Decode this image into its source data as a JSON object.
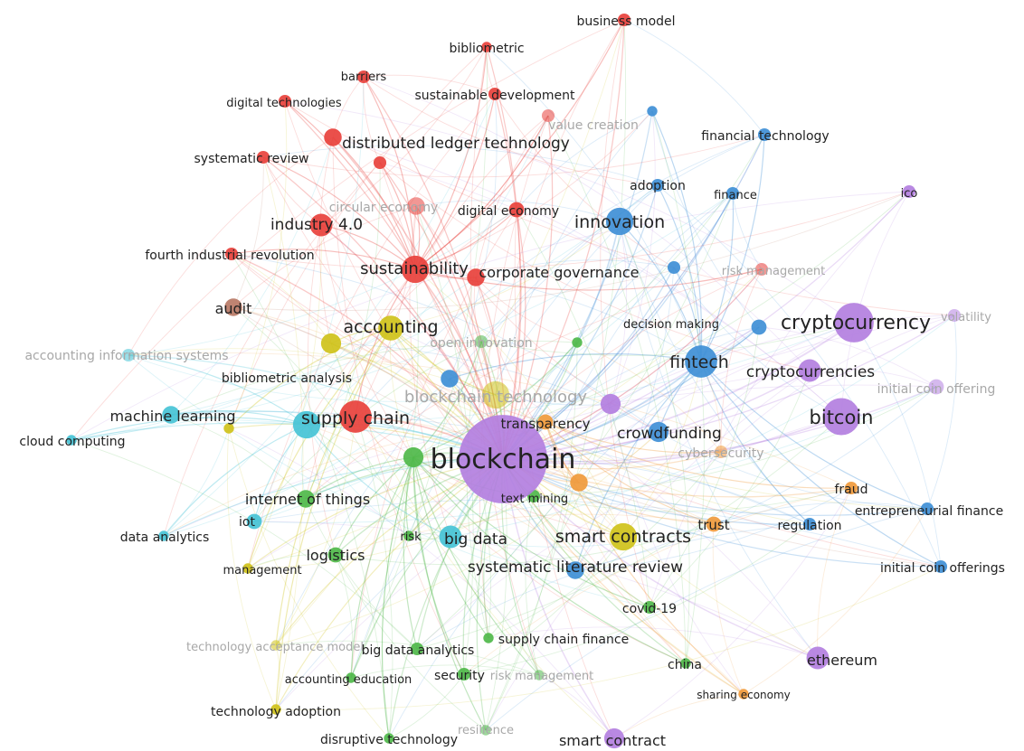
{
  "palette": {
    "red": "#e8413c",
    "blue": "#3f8fd6",
    "purple": "#b37fe0",
    "cyan": "#46c3d6",
    "green": "#4fb84a",
    "yellow": "#cfc21a",
    "orange": "#f09a3c",
    "brown": "#b97a66",
    "label": "#222222",
    "label_faded": "#a8a8a8",
    "background": "#ffffff"
  },
  "nodes": [
    {
      "id": "blockchain",
      "label": "blockchain",
      "cluster": "purple",
      "weight": 34
    },
    {
      "id": "cryptocurrency",
      "label": "cryptocurrency",
      "cluster": "purple",
      "weight": 14
    },
    {
      "id": "bitcoin",
      "label": "bitcoin",
      "cluster": "purple",
      "weight": 13
    },
    {
      "id": "cryptocurrencies",
      "label": "cryptocurrencies",
      "cluster": "purple",
      "weight": 7
    },
    {
      "id": "ethereum",
      "label": "ethereum",
      "cluster": "purple",
      "weight": 7
    },
    {
      "id": "smart-contract",
      "label": "smart contract",
      "cluster": "purple",
      "weight": 6
    },
    {
      "id": "ico",
      "label": "ico",
      "cluster": "purple",
      "weight": 3
    },
    {
      "id": "volatility",
      "label": "volatility",
      "cluster": "purple",
      "weight": 3,
      "faded": true
    },
    {
      "id": "initial-coin-offering",
      "label": "initial coin offering",
      "cluster": "purple",
      "weight": 4,
      "faded": true
    },
    {
      "id": "blockchain-purple-hub",
      "label": "",
      "cluster": "purple",
      "weight": 6
    },
    {
      "id": "innovation",
      "label": "innovation",
      "cluster": "blue",
      "weight": 9
    },
    {
      "id": "fintech",
      "label": "fintech",
      "cluster": "blue",
      "weight": 11
    },
    {
      "id": "crowdfunding",
      "label": "crowdfunding",
      "cluster": "blue",
      "weight": 6
    },
    {
      "id": "financial-technology",
      "label": "financial technology",
      "cluster": "blue",
      "weight": 3
    },
    {
      "id": "adoption",
      "label": "adoption",
      "cluster": "blue",
      "weight": 3
    },
    {
      "id": "finance",
      "label": "finance",
      "cluster": "blue",
      "weight": 3
    },
    {
      "id": "decision-making",
      "label": "decision making",
      "cluster": "blue",
      "weight": 4
    },
    {
      "id": "regulation",
      "label": "regulation",
      "cluster": "blue",
      "weight": 3
    },
    {
      "id": "entrepreneurial-finance",
      "label": "entrepreneurial finance",
      "cluster": "blue",
      "weight": 3
    },
    {
      "id": "initial-coin-offerings",
      "label": "initial coin offerings",
      "cluster": "blue",
      "weight": 3
    },
    {
      "id": "systematic-literature-review",
      "label": "systematic literature review",
      "cluster": "blue",
      "weight": 5
    },
    {
      "id": "blue-minor-1",
      "label": "",
      "cluster": "blue",
      "weight": 3
    },
    {
      "id": "blue-minor-2",
      "label": "",
      "cluster": "blue",
      "weight": 5
    },
    {
      "id": "blue-minor-3",
      "label": "",
      "cluster": "blue",
      "weight": 2
    },
    {
      "id": "sustainability",
      "label": "sustainability",
      "cluster": "red",
      "weight": 9
    },
    {
      "id": "supply-chain",
      "label": "supply chain",
      "cluster": "red",
      "weight": 11
    },
    {
      "id": "industry-4-0",
      "label": "industry 4.0",
      "cluster": "red",
      "weight": 7
    },
    {
      "id": "distributed-ledger-technology",
      "label": "distributed ledger technology",
      "cluster": "red",
      "weight": 5
    },
    {
      "id": "corporate-governance",
      "label": "corporate governance",
      "cluster": "red",
      "weight": 5
    },
    {
      "id": "digital-economy",
      "label": "digital economy",
      "cluster": "red",
      "weight": 4
    },
    {
      "id": "circular-economy",
      "label": "circular economy",
      "cluster": "red",
      "weight": 5,
      "faded": true
    },
    {
      "id": "fourth-industrial-revolution",
      "label": "fourth industrial revolution",
      "cluster": "red",
      "weight": 3
    },
    {
      "id": "systematic-review",
      "label": "systematic review",
      "cluster": "red",
      "weight": 3
    },
    {
      "id": "digital-technologies",
      "label": "digital technologies",
      "cluster": "red",
      "weight": 3
    },
    {
      "id": "barriers",
      "label": "barriers",
      "cluster": "red",
      "weight": 3
    },
    {
      "id": "sustainable-development",
      "label": "sustainable development",
      "cluster": "red",
      "weight": 3
    },
    {
      "id": "value-creation",
      "label": "value creation",
      "cluster": "red",
      "weight": 3,
      "faded": true
    },
    {
      "id": "bibliometric",
      "label": "bibliometric",
      "cluster": "red",
      "weight": 2
    },
    {
      "id": "business-model",
      "label": "business model",
      "cluster": "red",
      "weight": 3
    },
    {
      "id": "risk-management-red",
      "label": "risk management",
      "cluster": "red",
      "weight": 3,
      "faded": true
    },
    {
      "id": "red-minor-1",
      "label": "",
      "cluster": "red",
      "weight": 3
    },
    {
      "id": "accounting",
      "label": "accounting",
      "cluster": "yellow",
      "weight": 8
    },
    {
      "id": "blockchain-technology",
      "label": "blockchain technology",
      "cluster": "yellow",
      "weight": 9,
      "faded": true
    },
    {
      "id": "smart-contracts",
      "label": "smart contracts",
      "cluster": "yellow",
      "weight": 9
    },
    {
      "id": "bibliometric-analysis",
      "label": "bibliometric analysis",
      "cluster": "yellow",
      "weight": 6
    },
    {
      "id": "technology-acceptance-model",
      "label": "technology acceptance model",
      "cluster": "yellow",
      "weight": 2,
      "faded": true
    },
    {
      "id": "technology-adoption",
      "label": "technology adoption",
      "cluster": "yellow",
      "weight": 2
    },
    {
      "id": "management",
      "label": "management",
      "cluster": "yellow",
      "weight": 2
    },
    {
      "id": "yellow-minor-1",
      "label": "",
      "cluster": "yellow",
      "weight": 2
    },
    {
      "id": "internet-of-things",
      "label": "internet of things",
      "cluster": "green",
      "weight": 5
    },
    {
      "id": "logistics",
      "label": "logistics",
      "cluster": "green",
      "weight": 4
    },
    {
      "id": "open-innovation",
      "label": "open innovation",
      "cluster": "green",
      "weight": 3,
      "faded": true
    },
    {
      "id": "text-mining",
      "label": "text mining",
      "cluster": "green",
      "weight": 3
    },
    {
      "id": "big-data-analytics",
      "label": "big data analytics",
      "cluster": "green",
      "weight": 3
    },
    {
      "id": "supply-chain-finance",
      "label": "supply chain finance",
      "cluster": "green",
      "weight": 2
    },
    {
      "id": "covid-19",
      "label": "covid-19",
      "cluster": "green",
      "weight": 3
    },
    {
      "id": "china",
      "label": "china",
      "cluster": "green",
      "weight": 2
    },
    {
      "id": "security",
      "label": "security",
      "cluster": "green",
      "weight": 3
    },
    {
      "id": "accounting-education",
      "label": "accounting education",
      "cluster": "green",
      "weight": 2
    },
    {
      "id": "disruptive-technology",
      "label": "disruptive technology",
      "cluster": "green",
      "weight": 2
    },
    {
      "id": "resilience",
      "label": "resilience",
      "cluster": "green",
      "weight": 2,
      "faded": true
    },
    {
      "id": "risk-management-green",
      "label": "risk management",
      "cluster": "green",
      "weight": 2,
      "faded": true
    },
    {
      "id": "risk",
      "label": "risk",
      "cluster": "green",
      "weight": 2
    },
    {
      "id": "green-hub",
      "label": "",
      "cluster": "green",
      "weight": 6
    },
    {
      "id": "green-minor-1",
      "label": "",
      "cluster": "green",
      "weight": 2
    },
    {
      "id": "big-data",
      "label": "big data",
      "cluster": "cyan",
      "weight": 7
    },
    {
      "id": "machine-learning",
      "label": "machine learning",
      "cluster": "cyan",
      "weight": 5
    },
    {
      "id": "iot",
      "label": "iot",
      "cluster": "cyan",
      "weight": 4
    },
    {
      "id": "cloud-computing",
      "label": "cloud computing",
      "cluster": "cyan",
      "weight": 2
    },
    {
      "id": "data-analytics",
      "label": "data analytics",
      "cluster": "cyan",
      "weight": 2
    },
    {
      "id": "accounting-information-systems",
      "label": "accounting information systems",
      "cluster": "cyan",
      "weight": 3,
      "faded": true
    },
    {
      "id": "cyan-hub",
      "label": "",
      "cluster": "cyan",
      "weight": 9
    },
    {
      "id": "transparency",
      "label": "transparency",
      "cluster": "orange",
      "weight": 4
    },
    {
      "id": "trust",
      "label": "trust",
      "cluster": "orange",
      "weight": 4
    },
    {
      "id": "fraud",
      "label": "fraud",
      "cluster": "orange",
      "weight": 3
    },
    {
      "id": "cybersecurity",
      "label": "cybersecurity",
      "cluster": "orange",
      "weight": 3,
      "faded": true
    },
    {
      "id": "sharing-economy",
      "label": "sharing economy",
      "cluster": "orange",
      "weight": 2
    },
    {
      "id": "orange-hub",
      "label": "",
      "cluster": "orange",
      "weight": 5
    },
    {
      "id": "audit",
      "label": "audit",
      "cluster": "brown",
      "weight": 5
    }
  ]
}
